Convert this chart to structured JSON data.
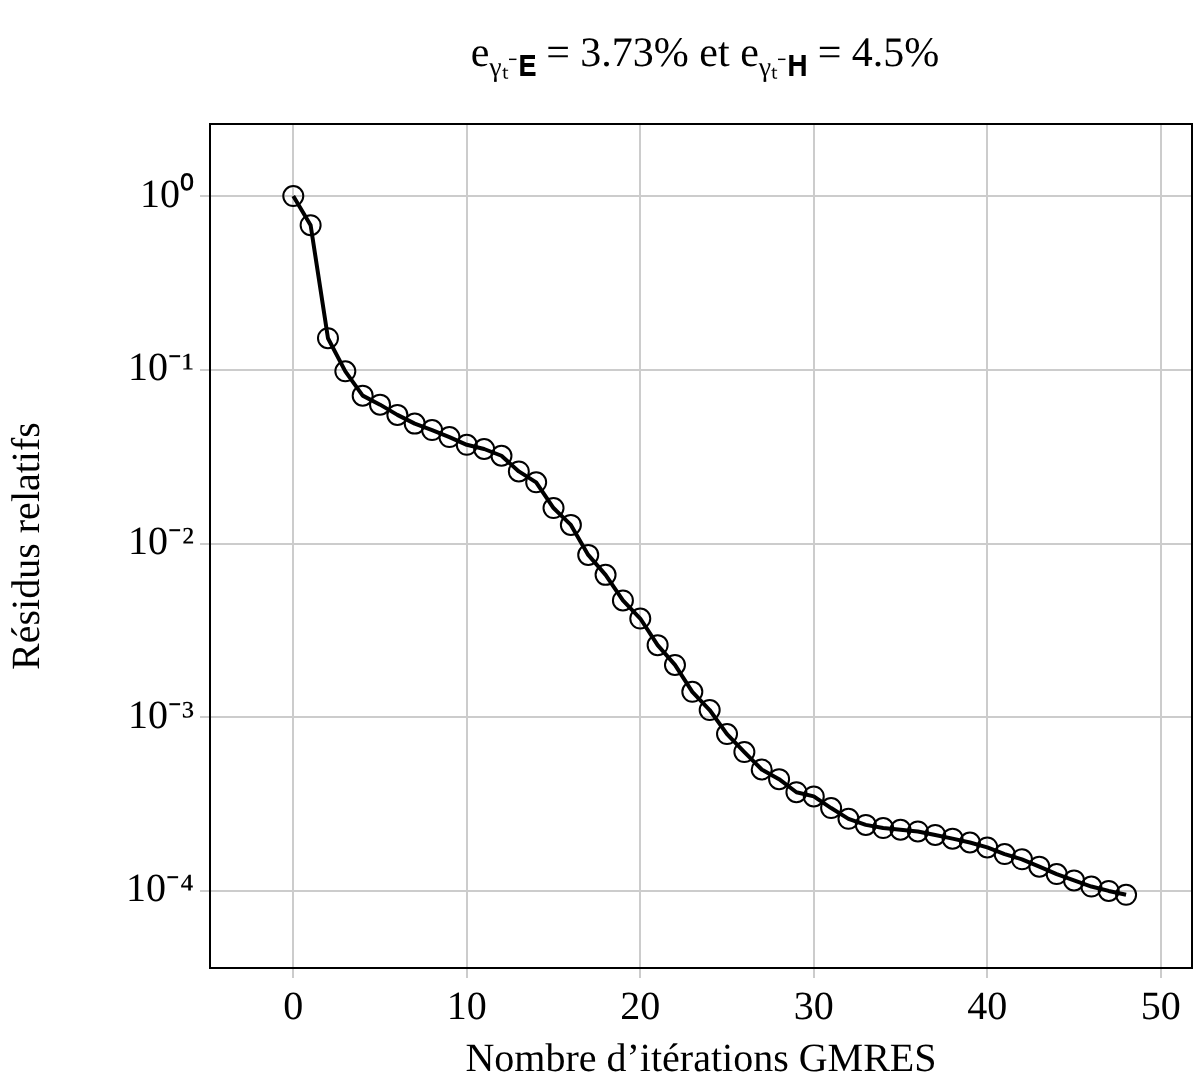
{
  "chart_data": {
    "type": "line",
    "title": "e$_{γₜ⁻𝐄}$ = 3.73% et e$_{γₜ⁻𝐇}$ = 4.5%",
    "xlabel": "Nombre d’itérations GMRES",
    "ylabel": "Résidus relatifs",
    "x": [
      0,
      1,
      2,
      3,
      4,
      5,
      6,
      7,
      8,
      9,
      10,
      11,
      12,
      13,
      14,
      15,
      16,
      17,
      18,
      19,
      20,
      21,
      22,
      23,
      24,
      25,
      26,
      27,
      28,
      29,
      30,
      31,
      32,
      33,
      34,
      35,
      36,
      37,
      38,
      39,
      40,
      41,
      42,
      43,
      44,
      45,
      46,
      47,
      48
    ],
    "series": [
      {
        "color": "#000000",
        "values": [
          1,
          0.68,
          0.152,
          0.098,
          0.071,
          0.063,
          0.055,
          0.049,
          0.045,
          0.041,
          0.037,
          0.035,
          0.032,
          0.026,
          0.0225,
          0.016,
          0.0128,
          0.0086,
          0.0066,
          0.0047,
          0.0037,
          0.0026,
          0.002,
          0.0014,
          0.0011,
          0.0008,
          0.00063,
          0.0005,
          0.00044,
          0.00037,
          0.00035,
          0.0003,
          0.00026,
          0.00024,
          0.00023,
          0.000225,
          0.00022,
          0.00021,
          0.0002,
          0.00019,
          0.000178,
          0.000163,
          0.000152,
          0.000138,
          0.000125,
          0.000115,
          0.000106,
          0.0001,
          9.5e-05
        ]
      }
    ],
    "xlim": [
      -4.8,
      51.8
    ],
    "xticks": [
      0,
      10,
      20,
      30,
      40,
      50
    ],
    "ylim": [
      3.6e-05,
      2.6
    ],
    "yticks": [
      {
        "value": 1,
        "label": "10⁰"
      },
      {
        "value": 0.1,
        "label": "10⁻¹"
      },
      {
        "value": 0.01,
        "label": "10⁻²"
      },
      {
        "value": 0.001,
        "label": "10⁻³"
      },
      {
        "value": 0.0001,
        "label": "10⁻⁴"
      }
    ],
    "log": "y",
    "grid": true,
    "legend": false,
    "marker": "circle",
    "line_style": "solid"
  }
}
